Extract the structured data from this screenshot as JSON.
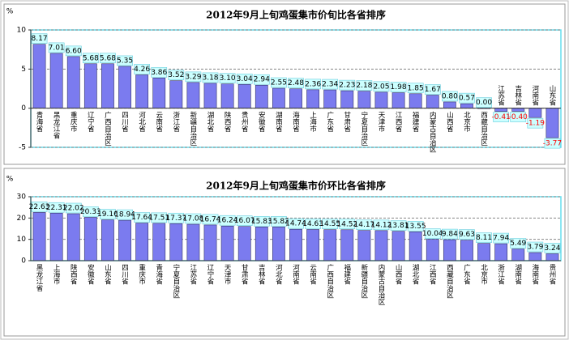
{
  "chart_data": [
    {
      "type": "bar",
      "title": "2012年9月上旬鸡蛋集市价旬比各省排序",
      "y_label": "%",
      "categories": [
        "青海省",
        "黑龙江省",
        "重庆市",
        "辽宁省",
        "广西自治区",
        "四川省",
        "河北省",
        "云南省",
        "浙江省",
        "新疆自治区",
        "湖北省",
        "陕西省",
        "贵州省",
        "安徽省",
        "湖南省",
        "海南省",
        "上海市",
        "广东省",
        "甘肃省",
        "宁夏自治区",
        "天津市",
        "江西省",
        "福建省",
        "内蒙古自治区",
        "山西省",
        "北京市",
        "西藏自治区",
        "江苏省",
        "吉林省",
        "河南省",
        "山东省"
      ],
      "values": [
        8.17,
        7.01,
        6.6,
        5.68,
        5.68,
        5.35,
        4.26,
        3.86,
        3.52,
        3.29,
        3.18,
        3.1,
        3.04,
        2.94,
        2.55,
        2.48,
        2.36,
        2.34,
        2.23,
        2.18,
        2.05,
        1.98,
        1.85,
        1.67,
        0.8,
        0.57,
        0,
        -0.41,
        -0.4,
        -1.19,
        -3.77
      ],
      "value_labels": [
        "8.17",
        "7.01",
        "6.60",
        "5.68",
        "5.68",
        "5.35",
        "4.26",
        "3.86",
        "3.52",
        "3.29",
        "3.18",
        "3.10",
        "3.04",
        "2.94",
        "2.55",
        "2.48",
        "2.36",
        "2.34",
        "2.23",
        "2.18",
        "2.05",
        "1.98",
        "1.85",
        "1.67",
        "0.80",
        "0.57",
        "0.00",
        "-0.41",
        "-0.40",
        "-1.19",
        "-3.77"
      ],
      "color": "#7b7bef",
      "negative_label_color": "#ff0000",
      "ylim": [
        -5,
        10
      ],
      "yticks": [
        -5,
        0,
        5,
        10
      ],
      "grid": true
    },
    {
      "type": "bar",
      "title": "2012年9月上旬鸡蛋集市价环比各省排序",
      "y_label": "%",
      "categories": [
        "黑龙江省",
        "上海市",
        "陕西省",
        "安徽省",
        "山东省",
        "四川省",
        "重庆市",
        "青海省",
        "宁夏自治区",
        "江苏省",
        "辽宁省",
        "天津市",
        "甘肃省",
        "吉林省",
        "河北省",
        "河南省",
        "云南省",
        "广西自治区",
        "福建省",
        "新疆自治区",
        "内蒙古自治区",
        "山西省",
        "湖北省",
        "江西省",
        "西藏自治区",
        "广东省",
        "北京市",
        "浙江省",
        "湖南省",
        "海南省",
        "贵州省"
      ],
      "values": [
        22.63,
        22.31,
        22.02,
        20.33,
        19.16,
        18.94,
        17.64,
        17.51,
        17.37,
        17.08,
        16.74,
        16.24,
        16.07,
        15.83,
        15.82,
        14.74,
        14.63,
        14.55,
        14.52,
        14.17,
        14.12,
        13.81,
        13.55,
        10.04,
        9.84,
        9.63,
        8.11,
        7.94,
        5.49,
        3.79,
        3.24
      ],
      "value_labels": [
        "22.63",
        "22.31",
        "22.02",
        "20.33",
        "19.16",
        "18.94",
        "17.64",
        "17.51",
        "17.37",
        "17.08",
        "16.74",
        "16.24",
        "16.07",
        "15.83",
        "15.82",
        "14.74",
        "14.63",
        "14.55",
        "14.52",
        "14.17",
        "14.12",
        "13.81",
        "13.55",
        "10.04",
        "9.84",
        "9.63",
        "8.11",
        "7.94",
        "5.49",
        "3.79",
        "3.24"
      ],
      "color": "#7b7bef",
      "negative_label_color": "#ff0000",
      "ylim": [
        0,
        30
      ],
      "yticks": [
        0,
        10,
        20,
        30
      ],
      "grid": true
    }
  ]
}
